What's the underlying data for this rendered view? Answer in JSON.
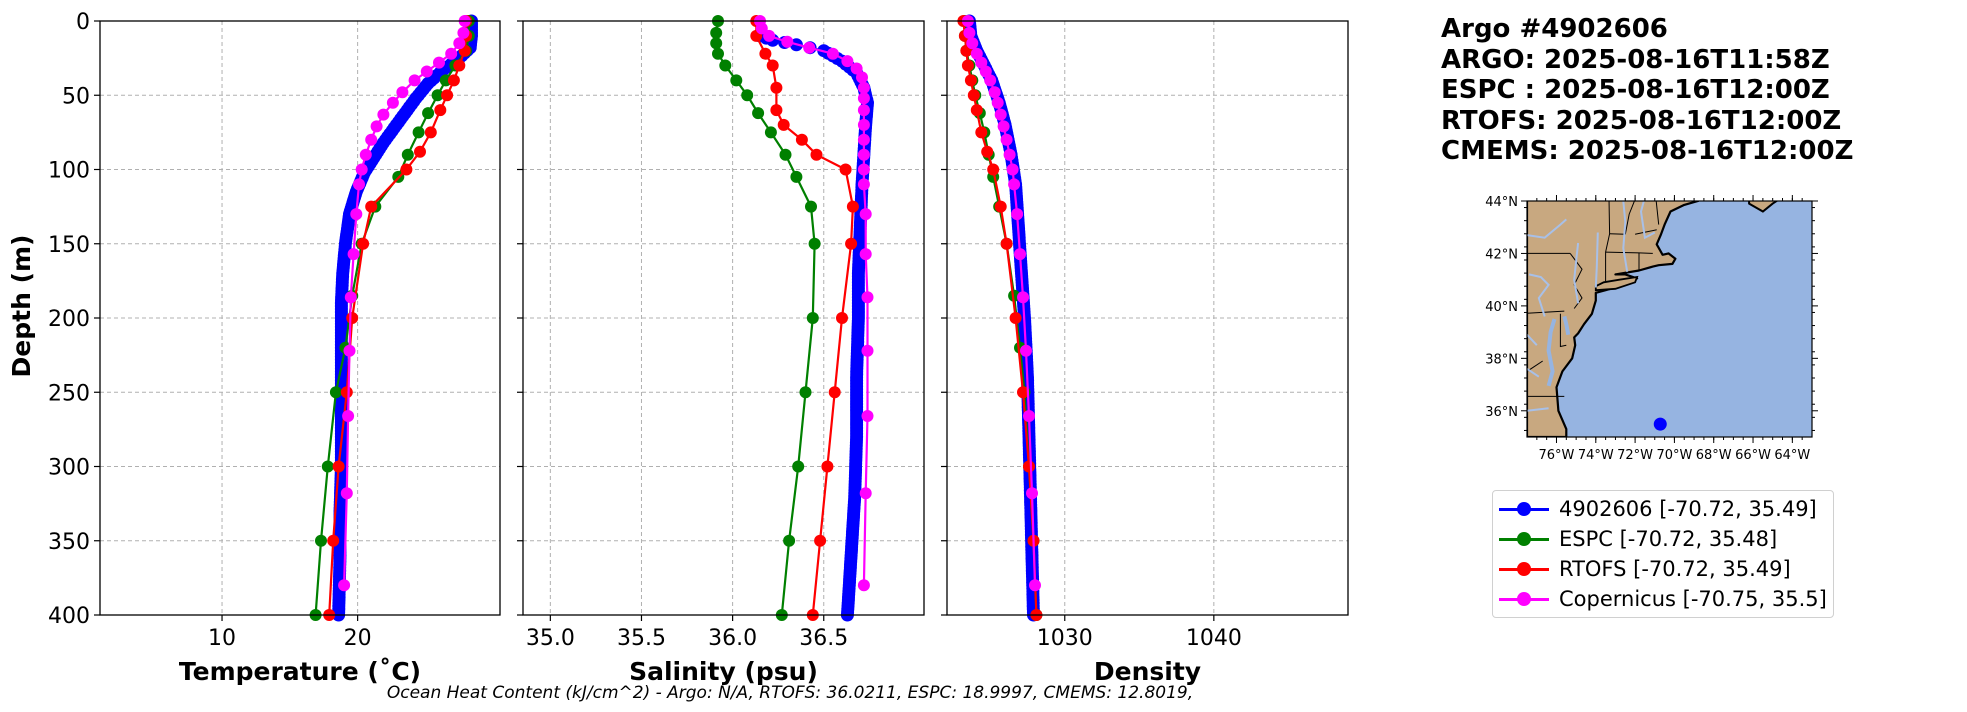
{
  "title_lines": [
    "Argo #4902606",
    "ARGO: 2025-08-16T11:58Z",
    "ESPC : 2025-08-16T12:00Z",
    "RTOFS: 2025-08-16T12:00Z",
    "CMEMS: 2025-08-16T12:00Z"
  ],
  "footnote": "Ocean Heat Content (kJ/cm^2) - Argo: N/A,  RTOFS: 36.0211,  ESPC: 18.9997,  CMEMS: 12.8019,",
  "colors": {
    "argo": "#0000ff",
    "espc": "#008000",
    "rtofs": "#ff0000",
    "copernicus": "#ff00ff",
    "land": "#c8a880",
    "ocean": "#96b4e1",
    "river": "#a8c0e8"
  },
  "legend": [
    {
      "label": "4902606 [-70.72, 35.49]",
      "color": "#0000ff"
    },
    {
      "label": "ESPC [-70.72, 35.48]",
      "color": "#008000"
    },
    {
      "label": "RTOFS [-70.72, 35.49]",
      "color": "#ff0000"
    },
    {
      "label": "Copernicus [-70.75, 35.5]",
      "color": "#ff00ff"
    }
  ],
  "map": {
    "lat_ticks": [
      "44°N",
      "42°N",
      "40°N",
      "38°N",
      "36°N"
    ],
    "lon_ticks": [
      "76°W",
      "74°W",
      "72°W",
      "70°W",
      "68°W",
      "66°W",
      "64°W"
    ],
    "extent": {
      "lon": [
        -77.5,
        -63
      ],
      "lat": [
        35,
        44
      ]
    },
    "marker": {
      "lon": -70.72,
      "lat": 35.49
    }
  },
  "chart_data": [
    {
      "type": "line",
      "ylabel": "Depth (m)",
      "xlabel": "Temperature (˚C)",
      "xlim": [
        1,
        30.5
      ],
      "ylim": [
        400,
        0
      ],
      "xticks": [
        10,
        20
      ],
      "yticks": [
        0,
        50,
        100,
        150,
        200,
        250,
        300,
        350,
        400
      ],
      "grid": true,
      "series": [
        {
          "key": "argo",
          "dense": true,
          "points": [
            [
              28.4,
              0
            ],
            [
              28.4,
              10
            ],
            [
              28.3,
              18
            ],
            [
              27.5,
              25
            ],
            [
              26.3,
              33
            ],
            [
              25.2,
              42
            ],
            [
              24.3,
              52
            ],
            [
              23.5,
              62
            ],
            [
              22.7,
              72
            ],
            [
              21.9,
              82
            ],
            [
              21.2,
              92
            ],
            [
              20.5,
              102
            ],
            [
              19.9,
              115
            ],
            [
              19.4,
              130
            ],
            [
              19.1,
              150
            ],
            [
              18.9,
              170
            ],
            [
              18.8,
              190
            ],
            [
              18.8,
              210
            ],
            [
              18.8,
              240
            ],
            [
              18.8,
              270
            ],
            [
              18.8,
              300
            ],
            [
              18.7,
              330
            ],
            [
              18.7,
              360
            ],
            [
              18.6,
              400
            ]
          ]
        },
        {
          "key": "espc",
          "points": [
            [
              28.2,
              0
            ],
            [
              28.2,
              10
            ],
            [
              28.0,
              20
            ],
            [
              27.2,
              30
            ],
            [
              26.5,
              40
            ],
            [
              25.9,
              50
            ],
            [
              25.2,
              62
            ],
            [
              24.5,
              75
            ],
            [
              23.7,
              90
            ],
            [
              23.0,
              105
            ],
            [
              21.3,
              125
            ],
            [
              20.3,
              150
            ],
            [
              19.6,
              185
            ],
            [
              19.1,
              220
            ],
            [
              18.4,
              250
            ],
            [
              17.8,
              300
            ],
            [
              17.3,
              350
            ],
            [
              16.9,
              400
            ]
          ]
        },
        {
          "key": "rtofs",
          "points": [
            [
              28.0,
              0
            ],
            [
              28.0,
              10
            ],
            [
              27.9,
              20
            ],
            [
              27.5,
              30
            ],
            [
              27.1,
              40
            ],
            [
              26.6,
              50
            ],
            [
              26.1,
              60
            ],
            [
              25.4,
              75
            ],
            [
              24.6,
              88
            ],
            [
              23.6,
              100
            ],
            [
              21.0,
              125
            ],
            [
              20.4,
              150
            ],
            [
              19.6,
              200
            ],
            [
              19.2,
              250
            ],
            [
              18.6,
              300
            ],
            [
              18.2,
              350
            ],
            [
              17.9,
              400
            ]
          ]
        },
        {
          "key": "copernicus",
          "points": [
            [
              27.9,
              0
            ],
            [
              27.8,
              8
            ],
            [
              27.5,
              15
            ],
            [
              26.9,
              22
            ],
            [
              26.0,
              28
            ],
            [
              25.1,
              34
            ],
            [
              24.2,
              40
            ],
            [
              23.3,
              48
            ],
            [
              22.6,
              55
            ],
            [
              21.9,
              63
            ],
            [
              21.4,
              71
            ],
            [
              21.0,
              80
            ],
            [
              20.6,
              90
            ],
            [
              20.3,
              100
            ],
            [
              20.1,
              110
            ],
            [
              19.9,
              130
            ],
            [
              19.7,
              157
            ],
            [
              19.5,
              186
            ],
            [
              19.4,
              222
            ],
            [
              19.3,
              266
            ],
            [
              19.2,
              318
            ],
            [
              19.0,
              380
            ]
          ]
        }
      ]
    },
    {
      "type": "line",
      "xlabel": "Salinity (psu)",
      "xlim": [
        34.85,
        37.05
      ],
      "ylim": [
        400,
        0
      ],
      "xticks": [
        35.0,
        35.5,
        36.0,
        36.5
      ],
      "xtick_labels": [
        "35.0",
        "35.5",
        "36.0",
        "36.5"
      ],
      "grid": true,
      "series": [
        {
          "key": "argo",
          "dense": true,
          "points": [
            [
              36.15,
              10
            ],
            [
              36.22,
              13
            ],
            [
              36.35,
              16
            ],
            [
              36.5,
              20
            ],
            [
              36.6,
              27
            ],
            [
              36.68,
              35
            ],
            [
              36.72,
              45
            ],
            [
              36.74,
              55
            ],
            [
              36.73,
              70
            ],
            [
              36.72,
              90
            ],
            [
              36.71,
              110
            ],
            [
              36.7,
              140
            ],
            [
              36.69,
              170
            ],
            [
              36.69,
              200
            ],
            [
              36.68,
              240
            ],
            [
              36.68,
              280
            ],
            [
              36.67,
              320
            ],
            [
              36.65,
              360
            ],
            [
              36.63,
              400
            ]
          ]
        },
        {
          "key": "espc",
          "points": [
            [
              35.92,
              0
            ],
            [
              35.91,
              8
            ],
            [
              35.91,
              15
            ],
            [
              35.92,
              22
            ],
            [
              35.96,
              30
            ],
            [
              36.02,
              40
            ],
            [
              36.08,
              50
            ],
            [
              36.14,
              62
            ],
            [
              36.21,
              75
            ],
            [
              36.29,
              90
            ],
            [
              36.35,
              105
            ],
            [
              36.43,
              125
            ],
            [
              36.45,
              150
            ],
            [
              36.44,
              200
            ],
            [
              36.4,
              250
            ],
            [
              36.36,
              300
            ],
            [
              36.31,
              350
            ],
            [
              36.27,
              400
            ]
          ]
        },
        {
          "key": "rtofs",
          "points": [
            [
              36.13,
              0
            ],
            [
              36.13,
              10
            ],
            [
              36.18,
              22
            ],
            [
              36.22,
              30
            ],
            [
              36.24,
              45
            ],
            [
              36.24,
              60
            ],
            [
              36.28,
              70
            ],
            [
              36.38,
              80
            ],
            [
              36.46,
              90
            ],
            [
              36.62,
              100
            ],
            [
              36.66,
              125
            ],
            [
              36.65,
              150
            ],
            [
              36.6,
              200
            ],
            [
              36.56,
              250
            ],
            [
              36.52,
              300
            ],
            [
              36.48,
              350
            ],
            [
              36.44,
              400
            ]
          ]
        },
        {
          "key": "copernicus",
          "points": [
            [
              36.15,
              0
            ],
            [
              36.16,
              5
            ],
            [
              36.2,
              10
            ],
            [
              36.3,
              14
            ],
            [
              36.42,
              18
            ],
            [
              36.55,
              22
            ],
            [
              36.63,
              27
            ],
            [
              36.68,
              32
            ],
            [
              36.71,
              38
            ],
            [
              36.72,
              45
            ],
            [
              36.72,
              52
            ],
            [
              36.72,
              60
            ],
            [
              36.72,
              70
            ],
            [
              36.72,
              80
            ],
            [
              36.72,
              90
            ],
            [
              36.72,
              100
            ],
            [
              36.72,
              110
            ],
            [
              36.73,
              130
            ],
            [
              36.73,
              157
            ],
            [
              36.74,
              186
            ],
            [
              36.74,
              222
            ],
            [
              36.74,
              266
            ],
            [
              36.73,
              318
            ],
            [
              36.72,
              380
            ]
          ]
        }
      ]
    },
    {
      "type": "line",
      "xlabel": "Density",
      "xlim": [
        1022.1,
        1049
      ],
      "ylim": [
        400,
        0
      ],
      "xticks": [
        1030,
        1040
      ],
      "grid": true,
      "series": [
        {
          "key": "argo",
          "dense": true,
          "points": [
            [
              1023.6,
              0
            ],
            [
              1023.7,
              10
            ],
            [
              1024.1,
              20
            ],
            [
              1024.6,
              30
            ],
            [
              1025.1,
              40
            ],
            [
              1025.6,
              55
            ],
            [
              1026.0,
              70
            ],
            [
              1026.4,
              90
            ],
            [
              1026.7,
              110
            ],
            [
              1026.9,
              140
            ],
            [
              1027.1,
              170
            ],
            [
              1027.3,
              200
            ],
            [
              1027.5,
              240
            ],
            [
              1027.6,
              280
            ],
            [
              1027.7,
              320
            ],
            [
              1027.8,
              360
            ],
            [
              1027.9,
              400
            ]
          ]
        },
        {
          "key": "espc",
          "points": [
            [
              1023.3,
              0
            ],
            [
              1023.3,
              10
            ],
            [
              1023.4,
              20
            ],
            [
              1023.6,
              30
            ],
            [
              1023.8,
              40
            ],
            [
              1024.0,
              50
            ],
            [
              1024.3,
              62
            ],
            [
              1024.6,
              75
            ],
            [
              1024.9,
              90
            ],
            [
              1025.2,
              105
            ],
            [
              1025.6,
              125
            ],
            [
              1026.1,
              150
            ],
            [
              1026.6,
              185
            ],
            [
              1027.0,
              220
            ],
            [
              1027.3,
              250
            ],
            [
              1027.6,
              300
            ],
            [
              1027.9,
              350
            ],
            [
              1028.1,
              400
            ]
          ]
        },
        {
          "key": "rtofs",
          "points": [
            [
              1023.2,
              0
            ],
            [
              1023.3,
              10
            ],
            [
              1023.4,
              20
            ],
            [
              1023.5,
              30
            ],
            [
              1023.7,
              40
            ],
            [
              1023.9,
              50
            ],
            [
              1024.1,
              60
            ],
            [
              1024.4,
              75
            ],
            [
              1024.8,
              88
            ],
            [
              1025.2,
              100
            ],
            [
              1025.7,
              125
            ],
            [
              1026.1,
              150
            ],
            [
              1026.7,
              200
            ],
            [
              1027.2,
              250
            ],
            [
              1027.6,
              300
            ],
            [
              1027.9,
              350
            ],
            [
              1028.1,
              400
            ]
          ]
        },
        {
          "key": "copernicus",
          "points": [
            [
              1023.5,
              0
            ],
            [
              1023.6,
              8
            ],
            [
              1023.8,
              15
            ],
            [
              1024.1,
              22
            ],
            [
              1024.4,
              28
            ],
            [
              1024.7,
              34
            ],
            [
              1025.0,
              40
            ],
            [
              1025.3,
              48
            ],
            [
              1025.5,
              55
            ],
            [
              1025.7,
              63
            ],
            [
              1025.9,
              71
            ],
            [
              1026.1,
              80
            ],
            [
              1026.3,
              90
            ],
            [
              1026.5,
              100
            ],
            [
              1026.6,
              110
            ],
            [
              1026.8,
              130
            ],
            [
              1027.0,
              157
            ],
            [
              1027.2,
              186
            ],
            [
              1027.4,
              222
            ],
            [
              1027.6,
              266
            ],
            [
              1027.8,
              318
            ],
            [
              1028.0,
              380
            ]
          ]
        }
      ]
    }
  ]
}
